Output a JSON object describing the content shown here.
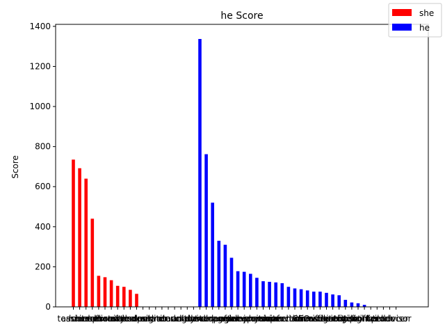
{
  "chart_data": {
    "type": "bar",
    "title": "he Score",
    "xlabel": "",
    "ylabel": "Score",
    "ylim": [
      0,
      1400
    ],
    "yticks": [
      0,
      200,
      400,
      600,
      800,
      1000,
      1200,
      1400
    ],
    "grid": false,
    "legend_position": "top-right",
    "categories": [
      "teacher",
      "assistant",
      "nurse",
      "hairdresser",
      "receptionist",
      "secretary",
      "librarian",
      "cashier",
      "housekeeper",
      "attendant",
      "baker",
      "cook",
      "designer",
      "editor",
      "writer",
      "clerk",
      "accountant",
      "auditor",
      "analyst",
      "guard",
      "driver",
      "developer",
      "manager",
      "carpenter",
      "lawyer",
      "engineer",
      "farmer",
      "laborer",
      "salesperson",
      "janitor",
      "physician",
      "chief",
      "mover",
      "supervisor",
      "mechanic",
      "construction worker",
      "CEO",
      "sheriff",
      "counselor",
      "investigator",
      "architect",
      "dentist",
      "scientist",
      "surgeon",
      "pilot",
      "firefighter",
      "painter",
      "officer",
      "tailor",
      "teller",
      "producer",
      "advisor"
    ],
    "series": [
      {
        "name": "she",
        "color": "#ff0000",
        "values": [
          735,
          692,
          640,
          440,
          155,
          148,
          133,
          105,
          100,
          85,
          65,
          0,
          0,
          0,
          0,
          0,
          0,
          0,
          0,
          0,
          0,
          0,
          0,
          0,
          0,
          0,
          0,
          0,
          0,
          0,
          0,
          0,
          0,
          0,
          0,
          0,
          0,
          0,
          0,
          0,
          0,
          0,
          0,
          0,
          0,
          0,
          0,
          0,
          0,
          0,
          0,
          0
        ]
      },
      {
        "name": "he",
        "color": "#0000ff",
        "values": [
          0,
          0,
          0,
          0,
          0,
          0,
          0,
          0,
          0,
          0,
          0,
          0,
          0,
          0,
          0,
          0,
          0,
          0,
          0,
          0,
          1337,
          762,
          520,
          330,
          310,
          245,
          178,
          175,
          165,
          145,
          128,
          125,
          122,
          118,
          100,
          92,
          88,
          82,
          76,
          76,
          70,
          62,
          58,
          35,
          22,
          18,
          10,
          0,
          0,
          0,
          0,
          0
        ]
      }
    ]
  }
}
